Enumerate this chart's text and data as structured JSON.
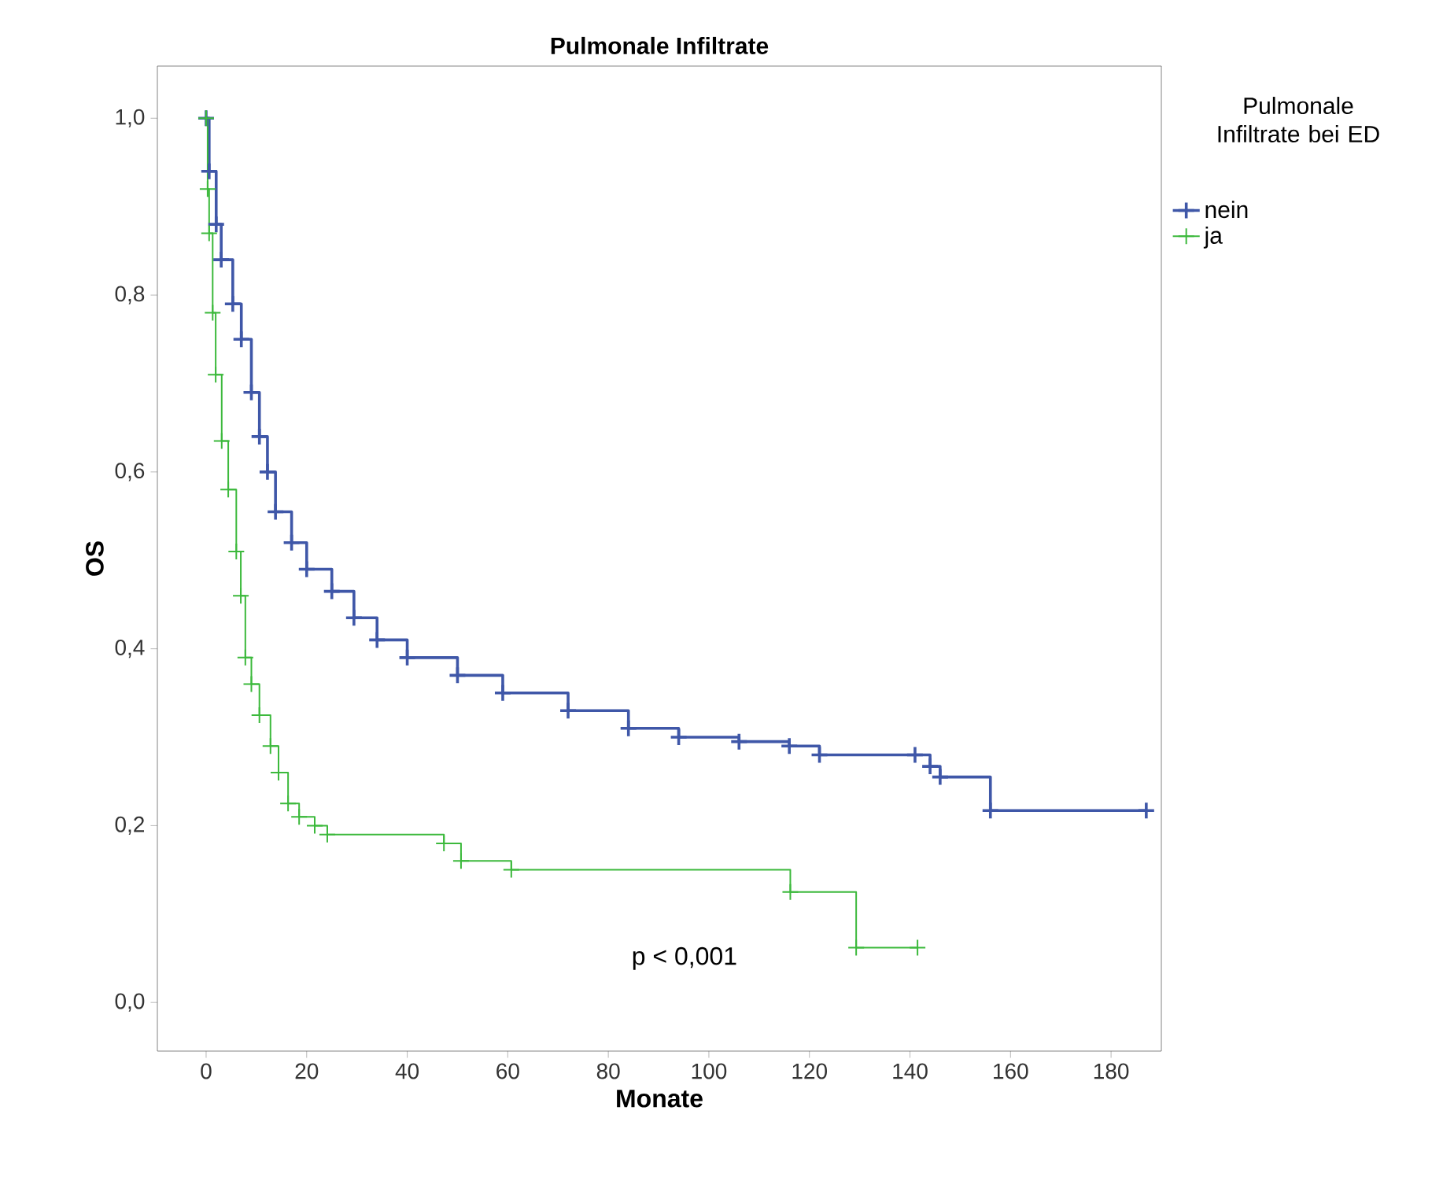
{
  "chart_data": {
    "type": "step",
    "title": "Pulmonale Infiltrate",
    "xlabel": "Monate",
    "ylabel": "OS",
    "legend_title": "Pulmonale Infiltrate bei ED",
    "xlim": [
      -9.7,
      190
    ],
    "ylim": [
      -0.055,
      1.059
    ],
    "xticks": [
      0,
      20,
      40,
      60,
      80,
      100,
      120,
      140,
      160,
      180
    ],
    "yticks": [
      {
        "value": 0,
        "label": "0,0"
      },
      {
        "value": 0.2,
        "label": "0,2"
      },
      {
        "value": 0.4,
        "label": "0,4"
      },
      {
        "value": 0.6,
        "label": "0,6"
      },
      {
        "value": 0.8,
        "label": "0,8"
      },
      {
        "value": 1,
        "label": "1,0"
      }
    ],
    "series": [
      {
        "name": "nein",
        "color": "#3f57a8",
        "x": [
          0,
          0.6,
          2,
          3,
          5.3,
          7,
          9,
          10.6,
          12.2,
          13.8,
          17,
          20,
          25,
          29.4,
          34,
          40,
          50,
          59,
          72,
          84,
          94,
          106,
          116,
          122,
          141,
          144,
          146,
          156,
          187
        ],
        "values": [
          1.0,
          0.94,
          0.88,
          0.84,
          0.79,
          0.75,
          0.69,
          0.64,
          0.6,
          0.555,
          0.52,
          0.49,
          0.465,
          0.435,
          0.41,
          0.39,
          0.37,
          0.35,
          0.33,
          0.31,
          0.3,
          0.295,
          0.29,
          0.28,
          0.28,
          0.267,
          0.255,
          0.217,
          0.217
        ]
      },
      {
        "name": "ja",
        "color": "#3cb93c",
        "x": [
          0,
          0.3,
          0.6,
          1.3,
          1.9,
          3.1,
          4.4,
          6,
          6.9,
          7.8,
          9,
          10.6,
          12.8,
          14.4,
          16.3,
          18.5,
          21.6,
          24.1,
          47.3,
          50.7,
          60.7,
          116.2,
          129.3,
          141.5
        ],
        "values": [
          1.0,
          0.92,
          0.87,
          0.78,
          0.71,
          0.635,
          0.58,
          0.51,
          0.46,
          0.39,
          0.36,
          0.325,
          0.29,
          0.26,
          0.225,
          0.21,
          0.2,
          0.19,
          0.18,
          0.16,
          0.15,
          0.125,
          0.062,
          0.062
        ]
      }
    ],
    "marker": "cross",
    "line_style": "solid",
    "grid": false,
    "legend": "right",
    "annotations": [
      "p < 0,001"
    ]
  }
}
